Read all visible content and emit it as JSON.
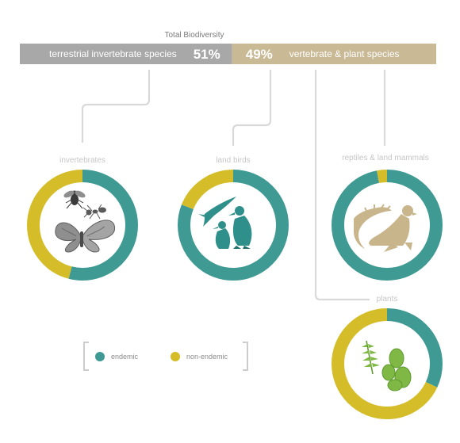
{
  "title": "Total Biodiversity",
  "colors": {
    "endemic": "#3f9a94",
    "non_endemic": "#d4bd28",
    "terrestrial_bar": "#a8a8a8",
    "vertebrate_bar": "#c9b995",
    "connector": "#d9d9d9"
  },
  "chart_data": [
    {
      "type": "bar",
      "orientation": "horizontal-stacked",
      "title": "Total Biodiversity",
      "categories": [
        "terrestrial invertebrate species",
        "vertebrate & plant species"
      ],
      "values": [
        51,
        49
      ],
      "labels": [
        "51%",
        "49%"
      ],
      "unit": "%"
    },
    {
      "type": "pie",
      "donut": true,
      "title": "invertebrates",
      "categories": [
        "endemic",
        "non-endemic"
      ],
      "values": [
        54,
        46
      ],
      "icons": [
        "fly-icon",
        "ant-icon",
        "butterfly-icon"
      ]
    },
    {
      "type": "pie",
      "donut": true,
      "title": "land birds",
      "categories": [
        "endemic",
        "non-endemic"
      ],
      "values": [
        81,
        19
      ],
      "icons": [
        "frigatebird-icon",
        "booby-icon",
        "booby-icon"
      ]
    },
    {
      "type": "pie",
      "donut": true,
      "title": "reptiles & land mammals",
      "categories": [
        "endemic",
        "non-endemic"
      ],
      "values": [
        97,
        3
      ],
      "icons": [
        "lizard-icon",
        "sea-lion-icon"
      ]
    },
    {
      "type": "pie",
      "donut": true,
      "title": "plants",
      "categories": [
        "endemic",
        "non-endemic"
      ],
      "values": [
        32,
        68
      ],
      "icons": [
        "fern-icon",
        "cactus-icon"
      ]
    }
  ],
  "legend": [
    {
      "label": "endemic",
      "color": "#3f9a94"
    },
    {
      "label": "non-endemic",
      "color": "#d4bd28"
    }
  ]
}
